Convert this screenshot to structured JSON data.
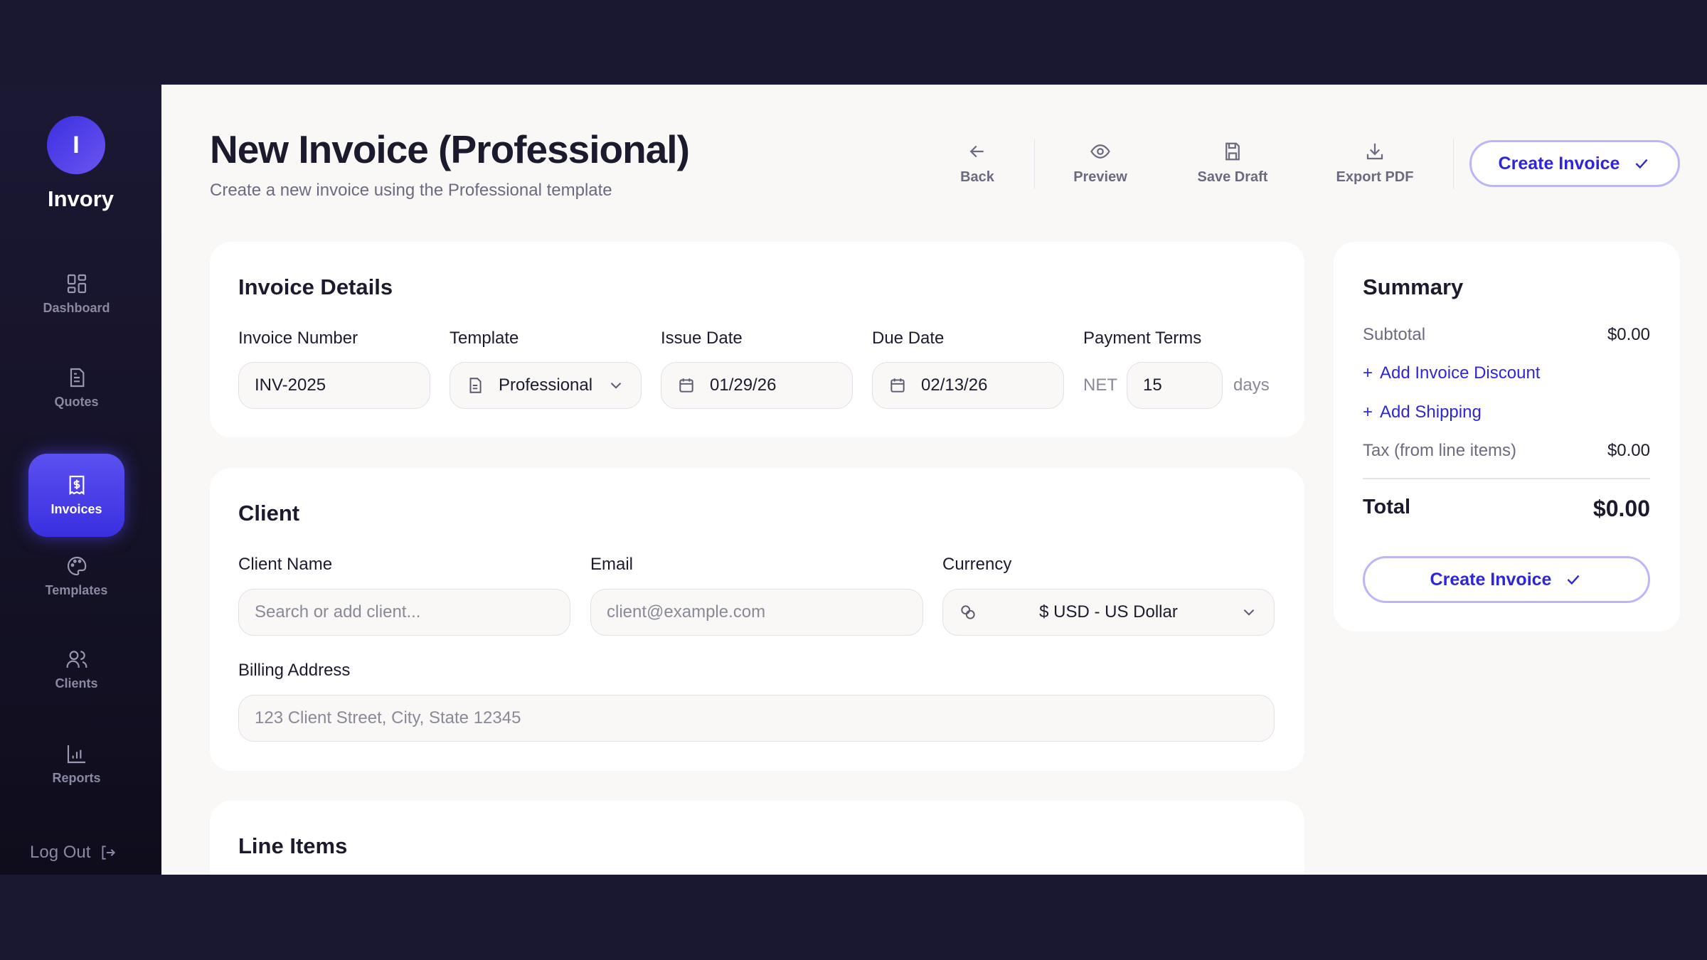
{
  "app": {
    "name": "Invory",
    "avatar_initial": "I"
  },
  "sidebar": {
    "items": [
      {
        "label": "Dashboard",
        "icon": "dashboard-grid-icon"
      },
      {
        "label": "Quotes",
        "icon": "document-icon"
      },
      {
        "label": "Invoices",
        "icon": "receipt-dollar-icon",
        "active": true
      },
      {
        "label": "Templates",
        "icon": "palette-icon"
      },
      {
        "label": "Clients",
        "icon": "users-icon"
      },
      {
        "label": "Reports",
        "icon": "bar-chart-icon"
      }
    ],
    "logout": "Log Out"
  },
  "header": {
    "title": "New Invoice (Professional)",
    "subtitle": "Create a new invoice using the Professional template"
  },
  "toolbar": {
    "back": "Back",
    "preview": "Preview",
    "save_draft": "Save Draft",
    "export_pdf": "Export PDF",
    "create": "Create Invoice"
  },
  "invoice_details": {
    "title": "Invoice Details",
    "invoice_number": {
      "label": "Invoice Number",
      "value": "INV-2025"
    },
    "template": {
      "label": "Template",
      "value": "Professional"
    },
    "issue_date": {
      "label": "Issue Date",
      "value": "01/29/26"
    },
    "due_date": {
      "label": "Due Date",
      "value": "02/13/26"
    },
    "payment_terms": {
      "label": "Payment Terms",
      "prefix": "NET",
      "value": "15",
      "suffix": "days"
    }
  },
  "client": {
    "title": "Client",
    "name": {
      "label": "Client Name",
      "placeholder": "Search or add client..."
    },
    "email": {
      "label": "Email",
      "placeholder": "client@example.com"
    },
    "currency": {
      "label": "Currency",
      "value": "$ USD - US Dollar"
    },
    "billing": {
      "label": "Billing Address",
      "placeholder": "123 Client Street, City, State 12345"
    }
  },
  "line_items": {
    "title": "Line Items"
  },
  "summary": {
    "title": "Summary",
    "subtotal_label": "Subtotal",
    "subtotal": "$0.00",
    "add_discount": "Add Invoice Discount",
    "add_shipping": "Add Shipping",
    "tax_label": "Tax (from line items)",
    "tax": "$0.00",
    "total_label": "Total",
    "total": "$0.00",
    "create": "Create Invoice"
  },
  "colors": {
    "accent": "#2f25d9",
    "sidebar": "#15132a",
    "active_nav": "#4a3fea"
  }
}
